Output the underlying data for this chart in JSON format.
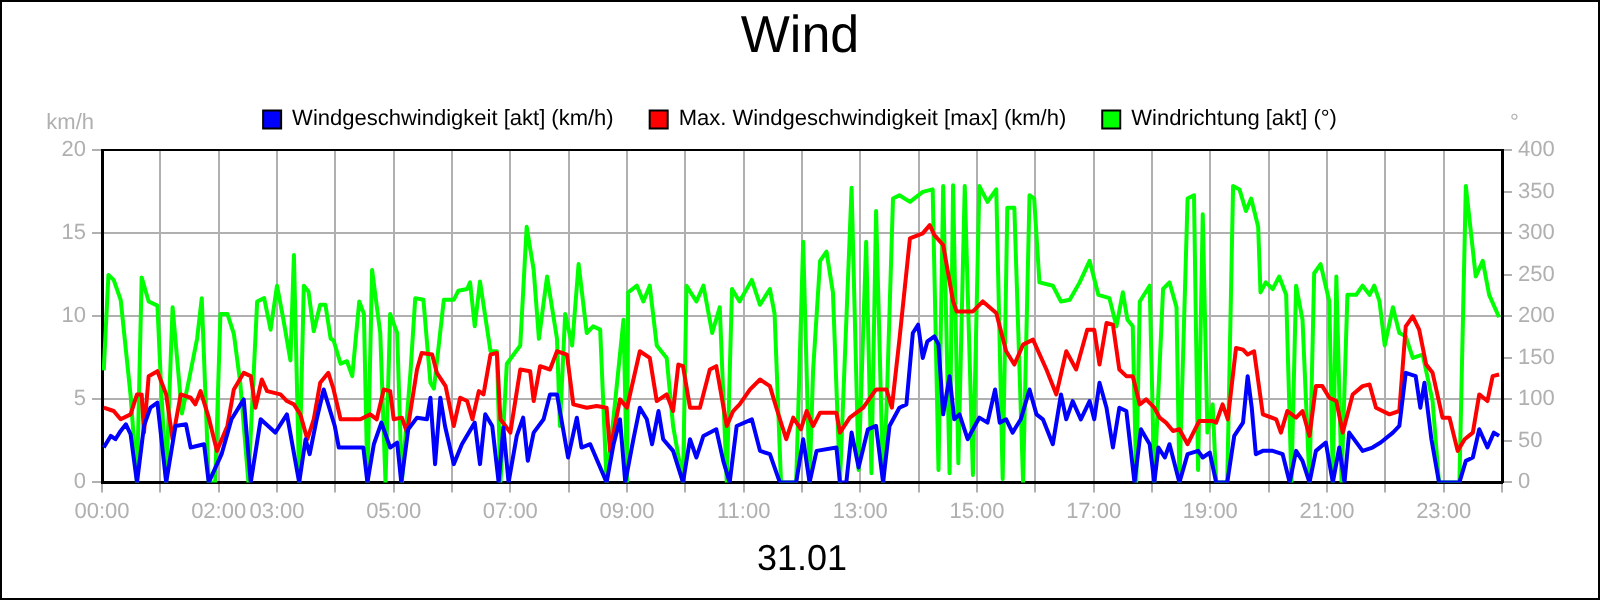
{
  "chart_data": {
    "type": "line",
    "title": "Wind",
    "xlabel": "31.01",
    "ylabel": "km/h",
    "y2label": "°",
    "legend": "top",
    "grid": true,
    "marker": "none",
    "line_style": "solid",
    "xlim": [
      0,
      24
    ],
    "xticks": [
      {
        "value": 0,
        "label": "00:00"
      },
      {
        "value": 1,
        "label": null
      },
      {
        "value": 2,
        "label": "02:00"
      },
      {
        "value": 3,
        "label": "03:00"
      },
      {
        "value": 4,
        "label": null
      },
      {
        "value": 5,
        "label": "05:00"
      },
      {
        "value": 6,
        "label": null
      },
      {
        "value": 7,
        "label": "07:00"
      },
      {
        "value": 8,
        "label": null
      },
      {
        "value": 9,
        "label": "09:00"
      },
      {
        "value": 10,
        "label": null
      },
      {
        "value": 11,
        "label": "11:00"
      },
      {
        "value": 12,
        "label": null
      },
      {
        "value": 13,
        "label": "13:00"
      },
      {
        "value": 14,
        "label": null
      },
      {
        "value": 15,
        "label": "15:00"
      },
      {
        "value": 16,
        "label": null
      },
      {
        "value": 17,
        "label": "17:00"
      },
      {
        "value": 18,
        "label": null
      },
      {
        "value": 19,
        "label": "19:00"
      },
      {
        "value": 20,
        "label": null
      },
      {
        "value": 21,
        "label": "21:00"
      },
      {
        "value": 22,
        "label": null
      },
      {
        "value": 23,
        "label": "23:00"
      },
      {
        "value": 24,
        "label": null
      }
    ],
    "ylim": [
      0,
      20
    ],
    "yticks": [
      0,
      5,
      10,
      15,
      20
    ],
    "y2lim": [
      0,
      400
    ],
    "y2ticks": [
      0,
      50,
      100,
      150,
      200,
      250,
      300,
      350,
      400
    ],
    "series": [
      {
        "name": "Windgeschwindigkeit [akt] (km/h)",
        "color": "#0000ff",
        "x": [
          0.03,
          0.15,
          0.23,
          0.32,
          0.41,
          0.49,
          0.6,
          0.72,
          0.83,
          0.95,
          1.1,
          1.26,
          1.44,
          1.52,
          1.75,
          1.83,
          2.05,
          2.22,
          2.43,
          2.55,
          2.72,
          2.97,
          3.17,
          3.38,
          3.49,
          3.56,
          3.68,
          3.8,
          3.99,
          4.06,
          4.48,
          4.55,
          4.66,
          4.79,
          4.94,
          5.06,
          5.13,
          5.25,
          5.4,
          5.57,
          5.63,
          5.71,
          5.8,
          5.88,
          6.03,
          6.17,
          6.39,
          6.48,
          6.57,
          6.69,
          6.8,
          6.88,
          6.97,
          7.11,
          7.22,
          7.3,
          7.4,
          7.57,
          7.68,
          7.8,
          7.99,
          8.14,
          8.22,
          8.37,
          8.65,
          8.77,
          8.88,
          8.97,
          9.11,
          9.22,
          9.34,
          9.43,
          9.54,
          9.62,
          9.79,
          9.96,
          10.08,
          10.19,
          10.31,
          10.53,
          10.65,
          10.76,
          10.88,
          11.14,
          11.28,
          11.45,
          11.62,
          11.9,
          12.02,
          12.13,
          12.25,
          12.59,
          12.65,
          12.76,
          12.85,
          12.97,
          13.13,
          13.27,
          13.39,
          13.5,
          13.67,
          13.79,
          13.9,
          13.99,
          14.07,
          14.15,
          14.27,
          14.34,
          14.42,
          14.53,
          14.61,
          14.7,
          14.84,
          14.93,
          15.04,
          15.18,
          15.31,
          15.39,
          15.5,
          15.61,
          15.75,
          15.9,
          16.02,
          16.13,
          16.3,
          16.44,
          16.53,
          16.64,
          16.78,
          16.93,
          17.01,
          17.1,
          17.22,
          17.33,
          17.44,
          17.56,
          17.7,
          17.81,
          17.96,
          18.04,
          18.11,
          18.22,
          18.3,
          18.47,
          18.61,
          18.79,
          18.87,
          18.99,
          19.1,
          19.29,
          19.41,
          19.56,
          19.64,
          19.71,
          19.78,
          19.9,
          20.07,
          20.24,
          20.36,
          20.47,
          20.58,
          20.7,
          20.81,
          20.98,
          21.1,
          21.21,
          21.3,
          21.38,
          21.61,
          21.78,
          21.92,
          22.13,
          22.24,
          22.35,
          22.52,
          22.6,
          22.67,
          22.79,
          22.92,
          23.27,
          23.38,
          23.5,
          23.61,
          23.75,
          23.86,
          23.95
        ],
        "values": [
          2.1,
          2.8,
          2.6,
          3.1,
          3.5,
          2.9,
          0,
          3.4,
          4.5,
          4.8,
          0,
          3.4,
          3.5,
          2.1,
          2.3,
          0,
          1.7,
          3.8,
          5.0,
          0,
          3.8,
          3.0,
          4.1,
          0,
          2.6,
          1.7,
          3.8,
          5.6,
          3.4,
          2.1,
          2.1,
          0,
          2.3,
          3.6,
          2.1,
          2.4,
          0,
          3.2,
          3.9,
          3.8,
          5.1,
          1.1,
          5.1,
          3.4,
          1.1,
          2.3,
          3.6,
          1.1,
          4.1,
          3.4,
          0,
          3.3,
          0,
          2.8,
          3.9,
          1.3,
          3.0,
          3.8,
          5.3,
          5.3,
          1.5,
          3.9,
          2.1,
          2.3,
          0,
          2.3,
          3.8,
          0,
          2.6,
          4.5,
          3.8,
          2.3,
          4.3,
          2.6,
          1.9,
          0,
          2.6,
          1.5,
          2.8,
          3.2,
          1.3,
          0,
          3.4,
          3.8,
          1.9,
          1.7,
          0,
          0,
          2.6,
          0,
          1.9,
          2.1,
          0,
          0,
          3.0,
          0.9,
          3.2,
          3.4,
          0,
          3.4,
          4.5,
          4.7,
          9.0,
          9.5,
          7.5,
          8.5,
          8.8,
          8.3,
          4.1,
          6.4,
          3.8,
          4.1,
          2.6,
          3.2,
          3.9,
          3.6,
          5.6,
          3.6,
          3.8,
          3.0,
          3.8,
          5.6,
          4.1,
          3.8,
          2.3,
          5.3,
          3.8,
          4.9,
          3.8,
          4.9,
          3.8,
          6.0,
          4.5,
          2.1,
          4.5,
          4.3,
          0,
          3.2,
          2.3,
          0,
          2.1,
          1.5,
          2.3,
          0,
          1.7,
          1.9,
          1.5,
          1.8,
          0,
          0,
          2.8,
          3.6,
          6.4,
          4.5,
          1.7,
          1.9,
          1.9,
          1.7,
          0,
          1.9,
          1.3,
          0,
          1.9,
          2.4,
          0,
          2.1,
          0,
          3.0,
          1.9,
          2.1,
          2.4,
          3.0,
          3.4,
          6.6,
          6.4,
          4.5,
          6.0,
          2.6,
          0,
          0,
          1.3,
          1.5,
          3.2,
          2.1,
          3.0,
          2.8
        ]
      },
      {
        "name": "Max. Windgeschwindigkeit [max] (km/h)",
        "color": "#ff0000",
        "x": [
          0.03,
          0.2,
          0.32,
          0.49,
          0.6,
          0.68,
          0.72,
          0.8,
          0.95,
          1.1,
          1.21,
          1.35,
          1.52,
          1.6,
          1.69,
          1.83,
          1.97,
          2.15,
          2.26,
          2.43,
          2.55,
          2.63,
          2.74,
          2.83,
          3.06,
          3.17,
          3.29,
          3.4,
          3.52,
          3.63,
          3.74,
          3.88,
          3.97,
          4.09,
          4.43,
          4.6,
          4.71,
          4.83,
          4.94,
          5.0,
          5.14,
          5.23,
          5.4,
          5.48,
          5.66,
          5.74,
          5.89,
          6.03,
          6.14,
          6.26,
          6.35,
          6.46,
          6.54,
          6.66,
          6.77,
          6.83,
          7.0,
          7.17,
          7.34,
          7.4,
          7.51,
          7.68,
          7.8,
          7.97,
          8.08,
          8.31,
          8.48,
          8.65,
          8.71,
          8.88,
          9.0,
          9.22,
          9.39,
          9.51,
          9.68,
          9.79,
          9.88,
          9.96,
          10.08,
          10.25,
          10.42,
          10.53,
          10.71,
          10.82,
          10.93,
          11.11,
          11.28,
          11.45,
          11.56,
          11.73,
          11.85,
          11.98,
          12.08,
          12.19,
          12.31,
          12.59,
          12.65,
          12.82,
          13.05,
          13.27,
          13.45,
          13.54,
          13.67,
          13.85,
          14.07,
          14.19,
          14.27,
          14.42,
          14.59,
          14.65,
          14.93,
          15.1,
          15.33,
          15.5,
          15.64,
          15.79,
          15.96,
          16.19,
          16.36,
          16.53,
          16.7,
          16.89,
          17.01,
          17.1,
          17.22,
          17.33,
          17.44,
          17.56,
          17.67,
          17.79,
          17.9,
          18.04,
          18.13,
          18.24,
          18.36,
          18.47,
          18.61,
          18.81,
          19.04,
          19.1,
          19.21,
          19.3,
          19.44,
          19.56,
          19.64,
          19.75,
          19.9,
          20.13,
          20.21,
          20.32,
          20.47,
          20.58,
          20.7,
          20.81,
          20.92,
          21.04,
          21.16,
          21.27,
          21.44,
          21.61,
          21.73,
          21.84,
          22.07,
          22.24,
          22.35,
          22.47,
          22.58,
          22.7,
          22.81,
          22.98,
          23.1,
          23.24,
          23.36,
          23.5,
          23.61,
          23.75,
          23.84,
          23.95
        ],
        "values": [
          4.5,
          4.3,
          3.8,
          4.1,
          5.3,
          5.3,
          3.0,
          6.4,
          6.7,
          5.3,
          2.6,
          5.3,
          5.1,
          4.7,
          5.5,
          3.9,
          1.9,
          3.4,
          5.6,
          6.6,
          6.4,
          4.5,
          6.2,
          5.5,
          5.3,
          4.9,
          4.7,
          4.1,
          2.6,
          3.8,
          6.0,
          6.6,
          5.6,
          3.8,
          3.8,
          4.1,
          3.8,
          5.6,
          5.5,
          3.8,
          3.9,
          3.0,
          6.8,
          7.8,
          7.7,
          6.6,
          5.8,
          3.4,
          5.1,
          4.9,
          3.8,
          5.5,
          5.3,
          7.7,
          7.8,
          3.8,
          3.0,
          6.8,
          6.7,
          4.9,
          7.0,
          6.8,
          7.9,
          7.7,
          4.7,
          4.5,
          4.6,
          4.5,
          1.9,
          5.0,
          4.5,
          7.9,
          7.5,
          4.9,
          5.3,
          4.3,
          7.1,
          7.0,
          4.5,
          4.5,
          6.8,
          7.0,
          3.4,
          4.3,
          4.7,
          5.6,
          6.2,
          5.8,
          4.5,
          2.6,
          3.9,
          3.2,
          4.3,
          3.4,
          4.2,
          4.2,
          3.0,
          3.9,
          4.5,
          5.6,
          5.6,
          4.5,
          8.6,
          14.7,
          15.0,
          15.5,
          14.9,
          14.3,
          10.9,
          10.3,
          10.3,
          10.9,
          10.2,
          7.9,
          7.1,
          8.3,
          8.6,
          6.8,
          5.3,
          7.9,
          6.8,
          9.2,
          9.2,
          7.1,
          9.6,
          9.5,
          6.8,
          6.4,
          6.4,
          4.7,
          5.0,
          4.5,
          3.9,
          3.6,
          3.1,
          3.2,
          2.3,
          3.7,
          3.7,
          3.6,
          4.7,
          3.8,
          8.1,
          8.0,
          7.7,
          7.9,
          4.1,
          3.8,
          3.0,
          4.3,
          3.9,
          4.3,
          2.8,
          5.8,
          5.8,
          5.1,
          4.9,
          3.0,
          5.3,
          5.8,
          5.9,
          4.5,
          4.1,
          4.3,
          9.4,
          10.0,
          9.2,
          7.1,
          6.6,
          3.9,
          3.9,
          1.9,
          2.6,
          3.0,
          5.3,
          4.9,
          6.4,
          6.5
        ]
      },
      {
        "name": "Windrichtung [akt] (°)",
        "color": "#00ff00",
        "axis": "y2",
        "x": [
          0.03,
          0.11,
          0.2,
          0.32,
          0.49,
          0.6,
          0.68,
          0.8,
          0.95,
          1.01,
          1.1,
          1.21,
          1.37,
          1.48,
          1.63,
          1.71,
          1.83,
          1.94,
          2.03,
          2.15,
          2.26,
          2.37,
          2.51,
          2.66,
          2.78,
          2.89,
          3.0,
          3.11,
          3.23,
          3.29,
          3.38,
          3.46,
          3.54,
          3.63,
          3.74,
          3.83,
          3.92,
          3.97,
          4.09,
          4.2,
          4.29,
          4.41,
          4.49,
          4.55,
          4.63,
          4.77,
          4.86,
          4.94,
          5.06,
          5.14,
          5.29,
          5.37,
          5.51,
          5.63,
          5.69,
          5.86,
          6.03,
          6.11,
          6.26,
          6.31,
          6.39,
          6.48,
          6.66,
          6.77,
          6.83,
          6.94,
          7.17,
          7.28,
          7.4,
          7.49,
          7.63,
          7.8,
          7.85,
          7.94,
          8.06,
          8.17,
          8.31,
          8.42,
          8.54,
          8.65,
          8.77,
          8.94,
          9.0,
          9.02,
          9.17,
          9.28,
          9.39,
          9.51,
          9.68,
          9.79,
          9.96,
          10.02,
          10.19,
          10.31,
          10.46,
          10.59,
          10.71,
          10.8,
          10.93,
          11.14,
          11.28,
          11.45,
          11.53,
          11.64,
          11.9,
          12.02,
          12.13,
          12.19,
          12.31,
          12.42,
          12.53,
          12.65,
          12.85,
          12.97,
          13.1,
          13.19,
          13.27,
          13.39,
          13.45,
          13.56,
          13.67,
          13.85,
          14.07,
          14.24,
          14.34,
          14.42,
          14.53,
          14.59,
          14.68,
          14.79,
          14.93,
          15.04,
          15.18,
          15.33,
          15.44,
          15.52,
          15.64,
          15.79,
          15.9,
          15.98,
          16.07,
          16.3,
          16.44,
          16.59,
          16.76,
          16.93,
          17.08,
          17.27,
          17.39,
          17.5,
          17.58,
          17.67,
          17.73,
          17.79,
          17.96,
          18.04,
          18.19,
          18.3,
          18.42,
          18.47,
          18.61,
          18.72,
          18.79,
          18.87,
          18.95,
          19.04,
          19.1,
          19.29,
          19.39,
          19.5,
          19.61,
          19.7,
          19.82,
          19.86,
          19.95,
          20.07,
          20.18,
          20.3,
          20.39,
          20.47,
          20.58,
          20.7,
          20.78,
          20.89,
          21.04,
          21.1,
          21.16,
          21.25,
          21.35,
          21.5,
          21.61,
          21.73,
          21.81,
          21.9,
          21.99,
          22.13,
          22.24,
          22.35,
          22.47,
          22.64,
          22.81,
          22.92,
          23.27,
          23.38,
          23.55,
          23.67,
          23.78,
          23.95
        ],
        "values": [
          135,
          250,
          244,
          220,
          105,
          0,
          247,
          218,
          213,
          120,
          0,
          211,
          83,
          120,
          173,
          222,
          0,
          0,
          203,
          203,
          179,
          120,
          0,
          218,
          222,
          184,
          237,
          196,
          147,
          274,
          0,
          237,
          230,
          182,
          214,
          214,
          173,
          171,
          143,
          146,
          128,
          218,
          203,
          0,
          256,
          180,
          0,
          203,
          180,
          0,
          135,
          222,
          220,
          120,
          113,
          220,
          220,
          231,
          233,
          241,
          188,
          242,
          158,
          158,
          0,
          143,
          165,
          308,
          256,
          173,
          248,
          173,
          68,
          203,
          165,
          263,
          180,
          188,
          184,
          0,
          79,
          196,
          0,
          229,
          237,
          218,
          237,
          165,
          150,
          68,
          0,
          237,
          218,
          237,
          180,
          211,
          0,
          233,
          218,
          244,
          214,
          233,
          203,
          0,
          0,
          290,
          0,
          135,
          267,
          278,
          229,
          0,
          355,
          15,
          290,
          11,
          327,
          0,
          90,
          342,
          346,
          338,
          350,
          353,
          15,
          357,
          11,
          358,
          23,
          357,
          9,
          357,
          338,
          353,
          4,
          331,
          331,
          0,
          346,
          342,
          241,
          237,
          218,
          220,
          241,
          267,
          226,
          222,
          188,
          229,
          196,
          188,
          0,
          218,
          237,
          0,
          233,
          241,
          211,
          0,
          342,
          346,
          15,
          323,
          60,
          94,
          0,
          0,
          357,
          353,
          327,
          342,
          308,
          229,
          241,
          233,
          248,
          226,
          0,
          237,
          196,
          0,
          252,
          263,
          218,
          0,
          248,
          0,
          226,
          226,
          237,
          226,
          237,
          218,
          165,
          211,
          180,
          176,
          150,
          154,
          98,
          0,
          0,
          357,
          248,
          267,
          226,
          199
        ]
      }
    ]
  }
}
